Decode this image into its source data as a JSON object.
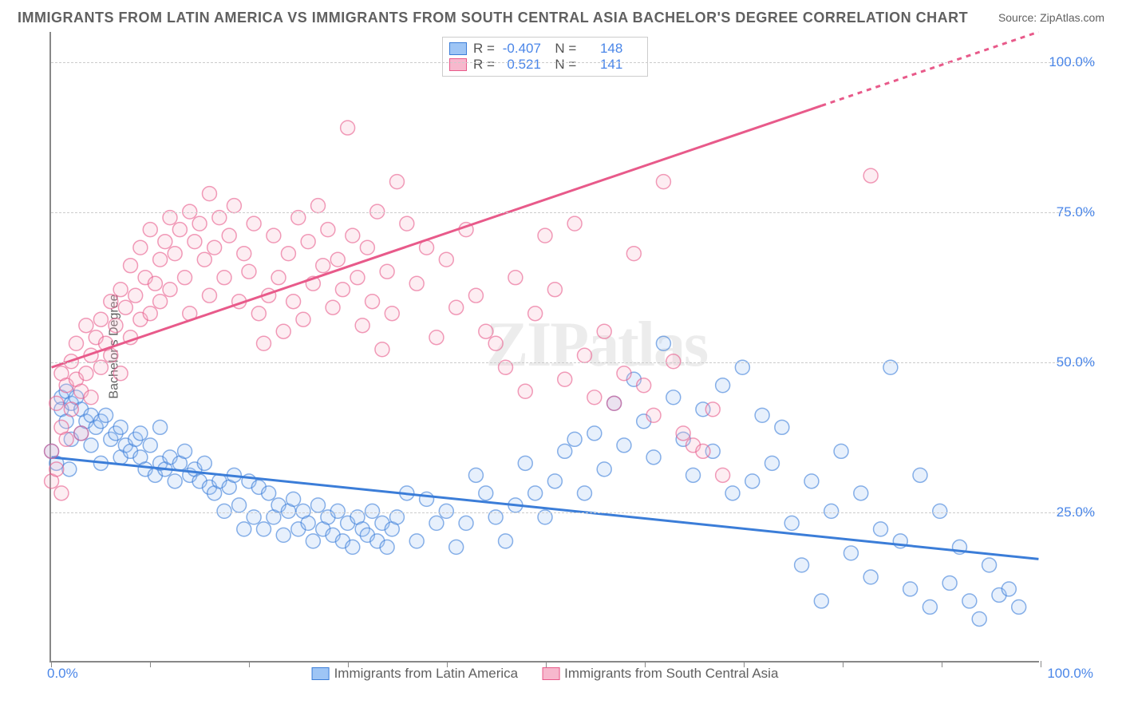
{
  "title": "IMMIGRANTS FROM LATIN AMERICA VS IMMIGRANTS FROM SOUTH CENTRAL ASIA BACHELOR'S DEGREE CORRELATION CHART",
  "source": "Source: ZipAtlas.com",
  "watermark": "ZIPatlas",
  "ylabel": "Bachelor's Degree",
  "chart": {
    "type": "scatter",
    "xlim": [
      0,
      100
    ],
    "ylim": [
      0,
      105
    ],
    "background_color": "#ffffff",
    "grid_color": "#cccccc",
    "axis_color": "#888888",
    "yticks": [
      {
        "v": 25,
        "label": "25.0%"
      },
      {
        "v": 50,
        "label": "50.0%"
      },
      {
        "v": 75,
        "label": "75.0%"
      },
      {
        "v": 100,
        "label": "100.0%"
      }
    ],
    "xticks_minor_pos": [
      0,
      10,
      20,
      30,
      40,
      50,
      60,
      70,
      80,
      90,
      100
    ],
    "xtick_labels": [
      {
        "v": 0,
        "label": "0.0%",
        "align": "left"
      },
      {
        "v": 100,
        "label": "100.0%",
        "align": "right"
      }
    ],
    "marker_radius": 9,
    "marker_stroke_width": 1.5,
    "marker_fill_opacity": 0.25,
    "trend_line_width": 3
  },
  "series": [
    {
      "name": "Immigrants from Latin America",
      "color_stroke": "#3b7dd8",
      "color_fill": "#9ec5f5",
      "R": "-0.407",
      "N": "148",
      "trend": {
        "x1": 0,
        "y1": 34,
        "x2": 100,
        "y2": 17,
        "dashed": false
      },
      "points": [
        [
          0,
          35
        ],
        [
          0.5,
          33
        ],
        [
          1,
          44
        ],
        [
          1,
          42
        ],
        [
          1.5,
          40
        ],
        [
          1.5,
          45
        ],
        [
          1.8,
          32
        ],
        [
          2,
          43
        ],
        [
          2,
          37
        ],
        [
          2.5,
          44
        ],
        [
          3,
          42
        ],
        [
          3,
          38
        ],
        [
          3.5,
          40
        ],
        [
          4,
          41
        ],
        [
          4,
          36
        ],
        [
          4.5,
          39
        ],
        [
          5,
          40
        ],
        [
          5,
          33
        ],
        [
          5.5,
          41
        ],
        [
          6,
          37
        ],
        [
          6.5,
          38
        ],
        [
          7,
          34
        ],
        [
          7,
          39
        ],
        [
          7.5,
          36
        ],
        [
          8,
          35
        ],
        [
          8.5,
          37
        ],
        [
          9,
          34
        ],
        [
          9,
          38
        ],
        [
          9.5,
          32
        ],
        [
          10,
          36
        ],
        [
          10.5,
          31
        ],
        [
          11,
          33
        ],
        [
          11,
          39
        ],
        [
          11.5,
          32
        ],
        [
          12,
          34
        ],
        [
          12.5,
          30
        ],
        [
          13,
          33
        ],
        [
          13.5,
          35
        ],
        [
          14,
          31
        ],
        [
          14.5,
          32
        ],
        [
          15,
          30
        ],
        [
          15.5,
          33
        ],
        [
          16,
          29
        ],
        [
          16.5,
          28
        ],
        [
          17,
          30
        ],
        [
          17.5,
          25
        ],
        [
          18,
          29
        ],
        [
          18.5,
          31
        ],
        [
          19,
          26
        ],
        [
          19.5,
          22
        ],
        [
          20,
          30
        ],
        [
          20.5,
          24
        ],
        [
          21,
          29
        ],
        [
          21.5,
          22
        ],
        [
          22,
          28
        ],
        [
          22.5,
          24
        ],
        [
          23,
          26
        ],
        [
          23.5,
          21
        ],
        [
          24,
          25
        ],
        [
          24.5,
          27
        ],
        [
          25,
          22
        ],
        [
          25.5,
          25
        ],
        [
          26,
          23
        ],
        [
          26.5,
          20
        ],
        [
          27,
          26
        ],
        [
          27.5,
          22
        ],
        [
          28,
          24
        ],
        [
          28.5,
          21
        ],
        [
          29,
          25
        ],
        [
          29.5,
          20
        ],
        [
          30,
          23
        ],
        [
          30.5,
          19
        ],
        [
          31,
          24
        ],
        [
          31.5,
          22
        ],
        [
          32,
          21
        ],
        [
          32.5,
          25
        ],
        [
          33,
          20
        ],
        [
          33.5,
          23
        ],
        [
          34,
          19
        ],
        [
          34.5,
          22
        ],
        [
          35,
          24
        ],
        [
          36,
          28
        ],
        [
          37,
          20
        ],
        [
          38,
          27
        ],
        [
          39,
          23
        ],
        [
          40,
          25
        ],
        [
          41,
          19
        ],
        [
          42,
          23
        ],
        [
          43,
          31
        ],
        [
          44,
          28
        ],
        [
          45,
          24
        ],
        [
          46,
          20
        ],
        [
          47,
          26
        ],
        [
          48,
          33
        ],
        [
          49,
          28
        ],
        [
          50,
          24
        ],
        [
          51,
          30
        ],
        [
          52,
          35
        ],
        [
          53,
          37
        ],
        [
          54,
          28
        ],
        [
          55,
          38
        ],
        [
          56,
          32
        ],
        [
          57,
          43
        ],
        [
          58,
          36
        ],
        [
          59,
          47
        ],
        [
          60,
          40
        ],
        [
          61,
          34
        ],
        [
          62,
          53
        ],
        [
          63,
          44
        ],
        [
          64,
          37
        ],
        [
          65,
          31
        ],
        [
          66,
          42
        ],
        [
          67,
          35
        ],
        [
          68,
          46
        ],
        [
          69,
          28
        ],
        [
          70,
          49
        ],
        [
          71,
          30
        ],
        [
          72,
          41
        ],
        [
          73,
          33
        ],
        [
          74,
          39
        ],
        [
          75,
          23
        ],
        [
          76,
          16
        ],
        [
          77,
          30
        ],
        [
          78,
          10
        ],
        [
          79,
          25
        ],
        [
          80,
          35
        ],
        [
          81,
          18
        ],
        [
          82,
          28
        ],
        [
          83,
          14
        ],
        [
          84,
          22
        ],
        [
          85,
          49
        ],
        [
          86,
          20
        ],
        [
          87,
          12
        ],
        [
          88,
          31
        ],
        [
          89,
          9
        ],
        [
          90,
          25
        ],
        [
          91,
          13
        ],
        [
          92,
          19
        ],
        [
          93,
          10
        ],
        [
          94,
          7
        ],
        [
          95,
          16
        ],
        [
          96,
          11
        ],
        [
          97,
          12
        ],
        [
          98,
          9
        ]
      ]
    },
    {
      "name": "Immigrants from South Central Asia",
      "color_stroke": "#e85a8a",
      "color_fill": "#f7b8cd",
      "R": "0.521",
      "N": "141",
      "trend": {
        "x1": 0,
        "y1": 49,
        "x2": 100,
        "y2": 105,
        "dashed_from_x": 78
      },
      "points": [
        [
          0,
          30
        ],
        [
          0,
          35
        ],
        [
          0.5,
          32
        ],
        [
          0.5,
          43
        ],
        [
          1,
          28
        ],
        [
          1,
          48
        ],
        [
          1,
          39
        ],
        [
          1.5,
          46
        ],
        [
          1.5,
          37
        ],
        [
          2,
          50
        ],
        [
          2,
          42
        ],
        [
          2.5,
          47
        ],
        [
          2.5,
          53
        ],
        [
          3,
          45
        ],
        [
          3,
          38
        ],
        [
          3.5,
          48
        ],
        [
          3.5,
          56
        ],
        [
          4,
          51
        ],
        [
          4,
          44
        ],
        [
          4.5,
          54
        ],
        [
          5,
          49
        ],
        [
          5,
          57
        ],
        [
          5.5,
          53
        ],
        [
          6,
          60
        ],
        [
          6,
          51
        ],
        [
          6.5,
          56
        ],
        [
          7,
          62
        ],
        [
          7,
          48
        ],
        [
          7.5,
          59
        ],
        [
          8,
          54
        ],
        [
          8,
          66
        ],
        [
          8.5,
          61
        ],
        [
          9,
          57
        ],
        [
          9,
          69
        ],
        [
          9.5,
          64
        ],
        [
          10,
          58
        ],
        [
          10,
          72
        ],
        [
          10.5,
          63
        ],
        [
          11,
          67
        ],
        [
          11,
          60
        ],
        [
          11.5,
          70
        ],
        [
          12,
          74
        ],
        [
          12,
          62
        ],
        [
          12.5,
          68
        ],
        [
          13,
          72
        ],
        [
          13.5,
          64
        ],
        [
          14,
          75
        ],
        [
          14,
          58
        ],
        [
          14.5,
          70
        ],
        [
          15,
          73
        ],
        [
          15.5,
          67
        ],
        [
          16,
          78
        ],
        [
          16,
          61
        ],
        [
          16.5,
          69
        ],
        [
          17,
          74
        ],
        [
          17.5,
          64
        ],
        [
          18,
          71
        ],
        [
          18.5,
          76
        ],
        [
          19,
          60
        ],
        [
          19.5,
          68
        ],
        [
          20,
          65
        ],
        [
          20.5,
          73
        ],
        [
          21,
          58
        ],
        [
          21.5,
          53
        ],
        [
          22,
          61
        ],
        [
          22.5,
          71
        ],
        [
          23,
          64
        ],
        [
          23.5,
          55
        ],
        [
          24,
          68
        ],
        [
          24.5,
          60
        ],
        [
          25,
          74
        ],
        [
          25.5,
          57
        ],
        [
          26,
          70
        ],
        [
          26.5,
          63
        ],
        [
          27,
          76
        ],
        [
          27.5,
          66
        ],
        [
          28,
          72
        ],
        [
          28.5,
          59
        ],
        [
          29,
          67
        ],
        [
          29.5,
          62
        ],
        [
          30,
          89
        ],
        [
          30.5,
          71
        ],
        [
          31,
          64
        ],
        [
          31.5,
          56
        ],
        [
          32,
          69
        ],
        [
          32.5,
          60
        ],
        [
          33,
          75
        ],
        [
          33.5,
          52
        ],
        [
          34,
          65
        ],
        [
          34.5,
          58
        ],
        [
          35,
          80
        ],
        [
          36,
          73
        ],
        [
          37,
          63
        ],
        [
          38,
          69
        ],
        [
          39,
          54
        ],
        [
          40,
          67
        ],
        [
          41,
          59
        ],
        [
          42,
          72
        ],
        [
          43,
          61
        ],
        [
          44,
          55
        ],
        [
          45,
          53
        ],
        [
          46,
          49
        ],
        [
          47,
          64
        ],
        [
          48,
          45
        ],
        [
          49,
          58
        ],
        [
          50,
          71
        ],
        [
          51,
          62
        ],
        [
          52,
          47
        ],
        [
          53,
          73
        ],
        [
          54,
          51
        ],
        [
          55,
          44
        ],
        [
          56,
          55
        ],
        [
          57,
          43
        ],
        [
          58,
          48
        ],
        [
          59,
          68
        ],
        [
          60,
          46
        ],
        [
          61,
          41
        ],
        [
          62,
          80
        ],
        [
          63,
          50
        ],
        [
          64,
          38
        ],
        [
          65,
          36
        ],
        [
          66,
          35
        ],
        [
          67,
          42
        ],
        [
          68,
          31
        ],
        [
          83,
          81
        ]
      ]
    }
  ],
  "legend_bottom": [
    {
      "label": "Immigrants from Latin America",
      "series_idx": 0
    },
    {
      "label": "Immigrants from South Central Asia",
      "series_idx": 1
    }
  ]
}
